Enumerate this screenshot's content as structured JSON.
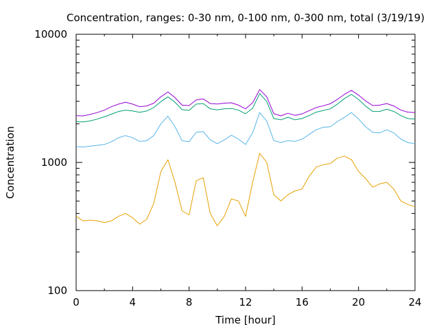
{
  "chart_data": {
    "type": "line",
    "title": "Concentration, ranges: 0-30 nm, 0-100 nm, 0-300 nm, total (3/19/19)",
    "xlabel": "Time [hour]",
    "ylabel": "Concentration",
    "xlim": [
      0,
      24
    ],
    "ylim": [
      100,
      10000
    ],
    "yscale": "log",
    "grid": false,
    "legend": "none",
    "xticks": [
      "0",
      "4",
      "8",
      "12",
      "16",
      "20",
      "24"
    ],
    "yticks": [
      "100",
      "1000",
      "10000"
    ],
    "x": [
      0,
      0.5,
      1,
      1.5,
      2,
      2.5,
      3,
      3.5,
      4,
      4.5,
      5,
      5.5,
      6,
      6.5,
      7,
      7.5,
      8,
      8.5,
      9,
      9.5,
      10,
      10.5,
      11,
      11.5,
      12,
      12.5,
      13,
      13.5,
      14,
      14.5,
      15,
      15.5,
      16,
      16.5,
      17,
      17.5,
      18,
      18.5,
      19,
      19.5,
      20,
      20.5,
      21,
      21.5,
      22,
      22.5,
      23,
      23.5,
      24
    ],
    "series": [
      {
        "color": "#e69f00",
        "values": [
          380,
          350,
          355,
          350,
          340,
          350,
          380,
          400,
          370,
          330,
          360,
          480,
          850,
          1050,
          700,
          420,
          390,
          720,
          760,
          400,
          320,
          380,
          520,
          500,
          380,
          700,
          1180,
          1000,
          560,
          500,
          560,
          600,
          620,
          780,
          920,
          960,
          980,
          1080,
          1120,
          1050,
          850,
          750,
          640,
          680,
          700,
          620,
          500,
          470,
          450
        ]
      },
      {
        "color": "#56b4e9",
        "values": [
          1330,
          1320,
          1340,
          1360,
          1380,
          1450,
          1560,
          1620,
          1560,
          1460,
          1480,
          1620,
          2000,
          2300,
          1900,
          1480,
          1450,
          1720,
          1740,
          1500,
          1400,
          1500,
          1630,
          1520,
          1380,
          1700,
          2450,
          2100,
          1480,
          1430,
          1480,
          1460,
          1520,
          1650,
          1800,
          1880,
          1900,
          2080,
          2250,
          2450,
          2180,
          1900,
          1720,
          1700,
          1800,
          1700,
          1520,
          1430,
          1400
        ]
      },
      {
        "color": "#009e73",
        "values": [
          2080,
          2070,
          2110,
          2180,
          2270,
          2380,
          2500,
          2560,
          2520,
          2460,
          2520,
          2680,
          2980,
          3250,
          2950,
          2580,
          2550,
          2850,
          2880,
          2620,
          2570,
          2620,
          2640,
          2560,
          2400,
          2650,
          3450,
          2980,
          2200,
          2150,
          2250,
          2150,
          2200,
          2320,
          2470,
          2540,
          2620,
          2850,
          3150,
          3400,
          3100,
          2750,
          2500,
          2500,
          2600,
          2500,
          2320,
          2200,
          2180
        ]
      },
      {
        "color": "#9400d3",
        "values": [
          2320,
          2310,
          2370,
          2450,
          2560,
          2720,
          2850,
          2950,
          2850,
          2720,
          2760,
          2900,
          3250,
          3550,
          3200,
          2800,
          2780,
          3070,
          3130,
          2880,
          2860,
          2900,
          2920,
          2800,
          2620,
          2920,
          3700,
          3250,
          2400,
          2310,
          2420,
          2330,
          2390,
          2530,
          2680,
          2770,
          2870,
          3100,
          3400,
          3650,
          3350,
          3020,
          2780,
          2800,
          2880,
          2760,
          2560,
          2470,
          2450
        ]
      }
    ]
  }
}
